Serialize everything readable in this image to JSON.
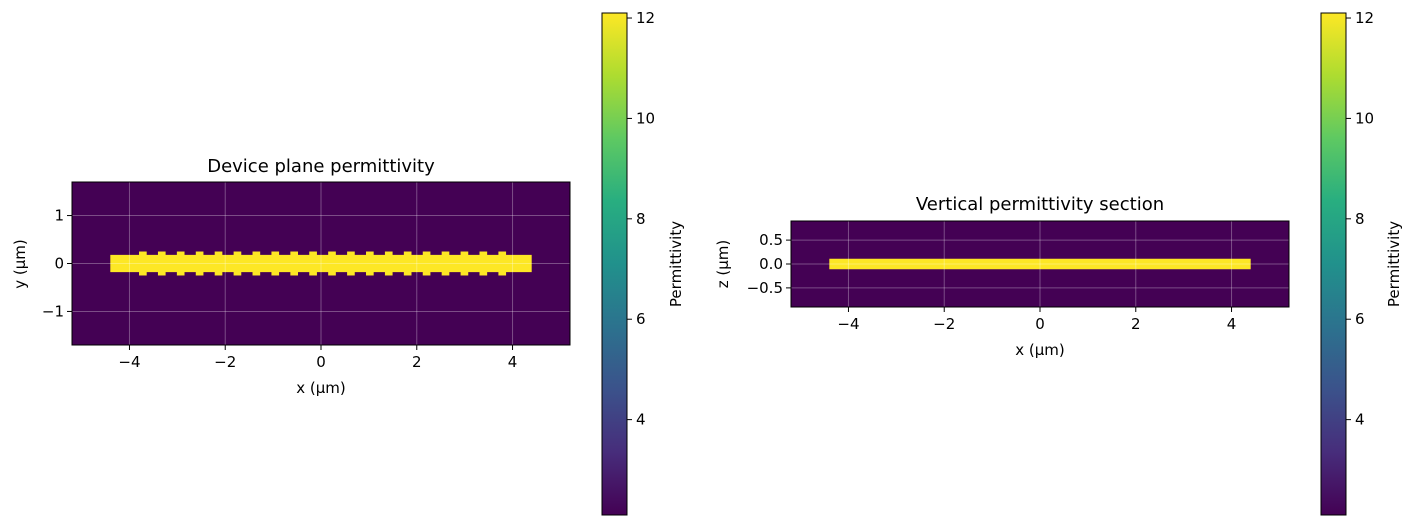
{
  "chart_data": [
    {
      "type": "heatmap",
      "title": "Device plane permittivity",
      "xlabel": "x (μm)",
      "ylabel": "y (μm)",
      "xlim": [
        -5.2,
        5.2
      ],
      "ylim": [
        -1.7,
        1.7
      ],
      "xticks": [
        -4,
        -2,
        0,
        2,
        4
      ],
      "xtick_labels": [
        "−4",
        "−2",
        "0",
        "2",
        "4"
      ],
      "yticks": [
        -1,
        0,
        1
      ],
      "ytick_labels": [
        "−1",
        "0",
        "1"
      ],
      "grid": true,
      "background_value": 2.1,
      "waveguide": {
        "x0": -4.4,
        "x1": 4.4,
        "half_width": 0.18,
        "value": 12.1
      },
      "grating_teeth": {
        "x_start": -3.8,
        "period": 0.395,
        "count": 20,
        "tooth_width": 0.16,
        "y_extent": 0.25,
        "value": 12.1
      },
      "colorbar": {
        "label": "Permittivity",
        "range": [
          2.1,
          12.1
        ],
        "ticks": [
          4,
          6,
          8,
          10,
          12
        ],
        "tick_labels": [
          "4",
          "6",
          "8",
          "10",
          "12"
        ],
        "colormap": "viridis"
      }
    },
    {
      "type": "heatmap",
      "title": "Vertical permittivity section",
      "xlabel": "x (μm)",
      "ylabel": "z (μm)",
      "xlim": [
        -5.2,
        5.2
      ],
      "ylim": [
        -0.9,
        0.9
      ],
      "xticks": [
        -4,
        -2,
        0,
        2,
        4
      ],
      "xtick_labels": [
        "−4",
        "−2",
        "0",
        "2",
        "4"
      ],
      "yticks": [
        -0.5,
        0.0,
        0.5
      ],
      "ytick_labels": [
        "−0.5",
        "0.0",
        "0.5"
      ],
      "grid": true,
      "background_value": 2.1,
      "waveguide": {
        "x0": -4.4,
        "x1": 4.4,
        "half_width": 0.11,
        "value": 12.1
      },
      "colorbar": {
        "label": "Permittivity",
        "range": [
          2.1,
          12.1
        ],
        "ticks": [
          4,
          6,
          8,
          10,
          12
        ],
        "tick_labels": [
          "4",
          "6",
          "8",
          "10",
          "12"
        ],
        "colormap": "viridis"
      }
    }
  ]
}
